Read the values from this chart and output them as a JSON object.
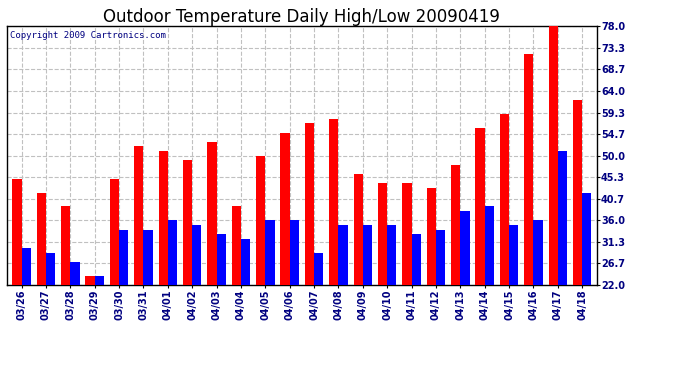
{
  "title": "Outdoor Temperature Daily High/Low 20090419",
  "copyright": "Copyright 2009 Cartronics.com",
  "dates": [
    "03/26",
    "03/27",
    "03/28",
    "03/29",
    "03/30",
    "03/31",
    "04/01",
    "04/02",
    "04/03",
    "04/04",
    "04/05",
    "04/06",
    "04/07",
    "04/08",
    "04/09",
    "04/10",
    "04/11",
    "04/12",
    "04/13",
    "04/14",
    "04/15",
    "04/16",
    "04/17",
    "04/18"
  ],
  "highs": [
    45,
    42,
    39,
    24,
    45,
    52,
    51,
    49,
    53,
    39,
    50,
    55,
    57,
    58,
    46,
    44,
    44,
    43,
    48,
    56,
    59,
    72,
    78,
    62
  ],
  "lows": [
    30,
    29,
    27,
    24,
    34,
    34,
    36,
    35,
    33,
    32,
    36,
    36,
    29,
    35,
    35,
    35,
    33,
    34,
    38,
    39,
    35,
    36,
    51,
    42
  ],
  "high_color": "#ff0000",
  "low_color": "#0000ff",
  "bg_color": "#ffffff",
  "grid_color": "#c0c0c0",
  "yticks": [
    22.0,
    26.7,
    31.3,
    36.0,
    40.7,
    45.3,
    50.0,
    54.7,
    59.3,
    64.0,
    68.7,
    73.3,
    78.0
  ],
  "ymin": 22.0,
  "ymax": 78.0,
  "bar_width": 0.38,
  "title_fontsize": 12,
  "tick_fontsize": 7,
  "copyright_fontsize": 6.5
}
